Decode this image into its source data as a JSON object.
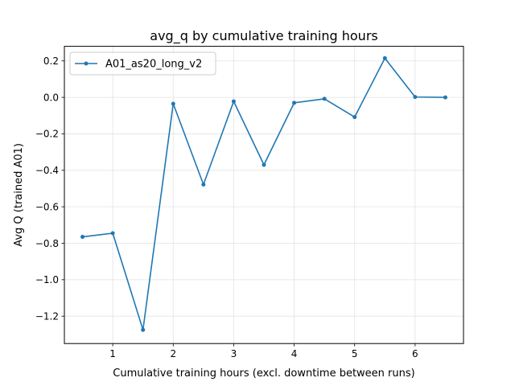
{
  "chart_data": {
    "type": "line",
    "title": "avg_q by cumulative training hours",
    "xlabel": "Cumulative training hours (excl. downtime between runs)",
    "ylabel": "Avg Q (trained A01)",
    "xlim": [
      0.2,
      6.8
    ],
    "ylim": [
      -1.35,
      0.28
    ],
    "x_ticks": [
      1,
      2,
      3,
      4,
      5,
      6
    ],
    "x_tick_labels": [
      "1",
      "2",
      "3",
      "4",
      "5",
      "6"
    ],
    "y_ticks": [
      0.2,
      0.0,
      -0.2,
      -0.4,
      -0.6,
      -0.8,
      -1.0,
      -1.2
    ],
    "y_tick_labels": [
      "0.2",
      "0.0",
      "−0.2",
      "−0.4",
      "−0.6",
      "−0.8",
      "−1.0",
      "−1.2"
    ],
    "grid": true,
    "legend_position": "top-left",
    "series": [
      {
        "name": "A01_as20_long_v2",
        "color": "#1f77b4",
        "marker": "circle",
        "x": [
          0.5,
          1.0,
          1.5,
          2.0,
          2.5,
          3.0,
          3.5,
          4.0,
          4.5,
          5.0,
          5.5,
          6.0,
          6.5
        ],
        "y": [
          -0.765,
          -0.745,
          -1.275,
          -0.035,
          -0.478,
          -0.022,
          -0.37,
          -0.03,
          -0.008,
          -0.108,
          0.215,
          0.002,
          0.0
        ]
      }
    ]
  }
}
